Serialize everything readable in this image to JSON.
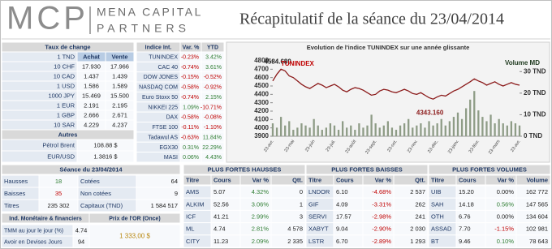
{
  "header": {
    "logo": "MCP",
    "brand_line1": "MENA CAPITAL",
    "brand_line2": "PARTNERS",
    "title": "Récapitulatif de la séance du 23/04/2014"
  },
  "fx": {
    "title": "Taux de change",
    "columns": [
      "1 TND",
      "Achat",
      "Vente"
    ],
    "rows": [
      [
        "10 CHF",
        "17.930",
        "17.966"
      ],
      [
        "10 CAD",
        "1.437",
        "1.439"
      ],
      [
        "1 USD",
        "1.586",
        "1.589"
      ],
      [
        "1000 JPY",
        "15.469",
        "15.500"
      ],
      [
        "1 EUR",
        "2.191",
        "2.195"
      ],
      [
        "1 GBP",
        "2.666",
        "2.671"
      ],
      [
        "10 SAR",
        "4.229",
        "4.237"
      ]
    ],
    "others_title": "Autres",
    "others": [
      [
        "Pétrol Brent",
        "108.88 $"
      ],
      [
        "EUR/USD",
        "1.3816 $"
      ]
    ]
  },
  "indices": {
    "columns": [
      "Indice Int.",
      "Var. %",
      "YTD"
    ],
    "rows": [
      [
        "TUNINDEX",
        "-0.23%",
        "3.42%"
      ],
      [
        "CAC 40",
        "-0.74%",
        "3.61%"
      ],
      [
        "DOW JONES",
        "-0.15%",
        "-0.52%"
      ],
      [
        "NASDAQ COM",
        "-0.58%",
        "-0.92%"
      ],
      [
        "Euro Stoxx 50",
        "-0.74%",
        "2.15%"
      ],
      [
        "NIKKEI 225",
        "1.09%",
        "-10.71%"
      ],
      [
        "DAX",
        "-0.58%",
        "-0.08%"
      ],
      [
        "FTSE 100",
        "-0.11%",
        "-1.10%"
      ],
      [
        "Tadawul AS",
        "-0.63%",
        "11.84%"
      ],
      [
        "EGX30",
        "0.31%",
        "22.29%"
      ],
      [
        "MASI",
        "0.06%",
        "4.43%"
      ]
    ]
  },
  "chart_data": {
    "type": "line",
    "title": "Evolution de l'indice TUNINDEX sur une année glissante",
    "categories": [
      "23-avr.",
      null,
      null,
      null,
      null,
      "23-mai",
      null,
      null,
      null,
      null,
      "23-juin",
      null,
      null,
      null,
      null,
      "23-juil.",
      null,
      null,
      null,
      null,
      "23-août",
      null,
      null,
      null,
      null,
      "23-sept.",
      null,
      null,
      null,
      null,
      "23-oct.",
      null,
      null,
      null,
      null,
      "23-nov.",
      null,
      null,
      null,
      null,
      "23-déc.",
      null,
      null,
      null,
      null,
      "23-janv.",
      null,
      null,
      null,
      null,
      "23-févr.",
      null,
      null,
      null,
      null,
      "23-mars",
      null,
      null,
      null,
      null,
      "23-avr."
    ],
    "series": [
      {
        "name": "TUNINDEX",
        "color": "#8b1a1a",
        "type": "line",
        "values": [
          4560,
          4640,
          4700,
          4680,
          4620,
          4600,
          4560,
          4520,
          4490,
          4470,
          4500,
          4530,
          4510,
          4480,
          4500,
          4520,
          4490,
          4450,
          4430,
          4460,
          4480,
          4470,
          4450,
          4420,
          4390,
          4400,
          4440,
          4460,
          4450,
          4430,
          4420,
          4440,
          4460,
          4440,
          4410,
          4400,
          4420,
          4390,
          4360,
          4343.16,
          4370,
          4390,
          4380,
          4410,
          4440,
          4460,
          4490,
          4520,
          4550,
          4584.68,
          4560,
          4540,
          4510,
          4530,
          4550,
          4520,
          4500,
          4520,
          4540,
          4520,
          4510
        ]
      },
      {
        "name": "Volume MD",
        "color": "#8e9c86",
        "type": "bar",
        "axis": "y2",
        "values": [
          6,
          4,
          9,
          5,
          7,
          3,
          4,
          6,
          5,
          4,
          8,
          5,
          3,
          4,
          6,
          5,
          3,
          7,
          4,
          5,
          3,
          6,
          4,
          5,
          10,
          6,
          4,
          5,
          7,
          4,
          3,
          5,
          6,
          8,
          4,
          5,
          6,
          4,
          7,
          5,
          6,
          8,
          5,
          7,
          9,
          11,
          8,
          13,
          17,
          21,
          12,
          9,
          7,
          10,
          6,
          8,
          6,
          5,
          7,
          6,
          5
        ]
      }
    ],
    "annotations": [
      "4584.680",
      "4343.160"
    ],
    "ylim": [
      3900,
      4800
    ],
    "yticks": [
      3900,
      4000,
      4100,
      4200,
      4300,
      4400,
      4500,
      4600,
      4700,
      4800
    ],
    "y2lim": [
      0,
      35
    ],
    "y2ticks": [
      {
        "value": 0,
        "label": "0 TND"
      },
      {
        "value": 10,
        "label": "10 TND"
      },
      {
        "value": 20,
        "label": "20 TND"
      },
      {
        "value": 30,
        "label": "30 TND"
      }
    ],
    "grid": false
  },
  "session": {
    "title": "Séance du 23/04/2014",
    "rows": [
      [
        "Hausses",
        "18",
        "Cotées",
        "64"
      ],
      [
        "Baisses",
        "35",
        "Non cotées",
        "9"
      ],
      [
        "Titres",
        "235 302",
        "Capitaux (TND)",
        "1 584 517"
      ]
    ]
  },
  "monetary": {
    "title": "Ind. Monétaire & financiers",
    "rows": [
      [
        "TMM au jour le jour (%)",
        "4.74"
      ],
      [
        "Avoir en Devises Jours",
        "94"
      ]
    ]
  },
  "gold": {
    "title": "Prix de l'OR (Once)",
    "value": "1 333,00 $"
  },
  "movers": [
    {
      "title": "PLUS FORTES HAUSSES",
      "columns": [
        "Titre",
        "Cours",
        "Var %",
        "Qtt."
      ],
      "rows": [
        [
          "AMS",
          "5.07",
          "4.32%",
          "0"
        ],
        [
          "ALKIM",
          "52.56",
          "3.06%",
          "1"
        ],
        [
          "ICF",
          "41.21",
          "2.99%",
          "3"
        ],
        [
          "ML",
          "4.74",
          "2.81%",
          "4 578"
        ],
        [
          "CITY",
          "11.23",
          "2.09%",
          "2 335"
        ]
      ]
    },
    {
      "title": "PLUS FORTES BAISSES",
      "columns": [
        "Titre",
        "Cours",
        "Var %",
        "Qtt."
      ],
      "rows": [
        [
          "LNDOR",
          "6.10",
          "-4.68%",
          "2 537"
        ],
        [
          "GIF",
          "4.09",
          "-3.31%",
          "262"
        ],
        [
          "SERVI",
          "17.57",
          "-2.98%",
          "241"
        ],
        [
          "XABYT",
          "9.04",
          "-2.90%",
          "2 030"
        ],
        [
          "LSTR",
          "6.70",
          "-2.89%",
          "1 293"
        ]
      ]
    },
    {
      "title": "PLUS FORTES VOLUMES",
      "columns": [
        "Titre",
        "Cours",
        "Var %",
        "Volume"
      ],
      "rows": [
        [
          "UIB",
          "15.20",
          "0.00%",
          "162 772"
        ],
        [
          "SAH",
          "14.18",
          "0.56%",
          "147 565"
        ],
        [
          "OTH",
          "6.76",
          "0.00%",
          "134 604"
        ],
        [
          "ASSAD",
          "7.70",
          "-1.15%",
          "102 981"
        ],
        [
          "BT",
          "9.46",
          "0.10%",
          "78 643"
        ]
      ]
    }
  ]
}
